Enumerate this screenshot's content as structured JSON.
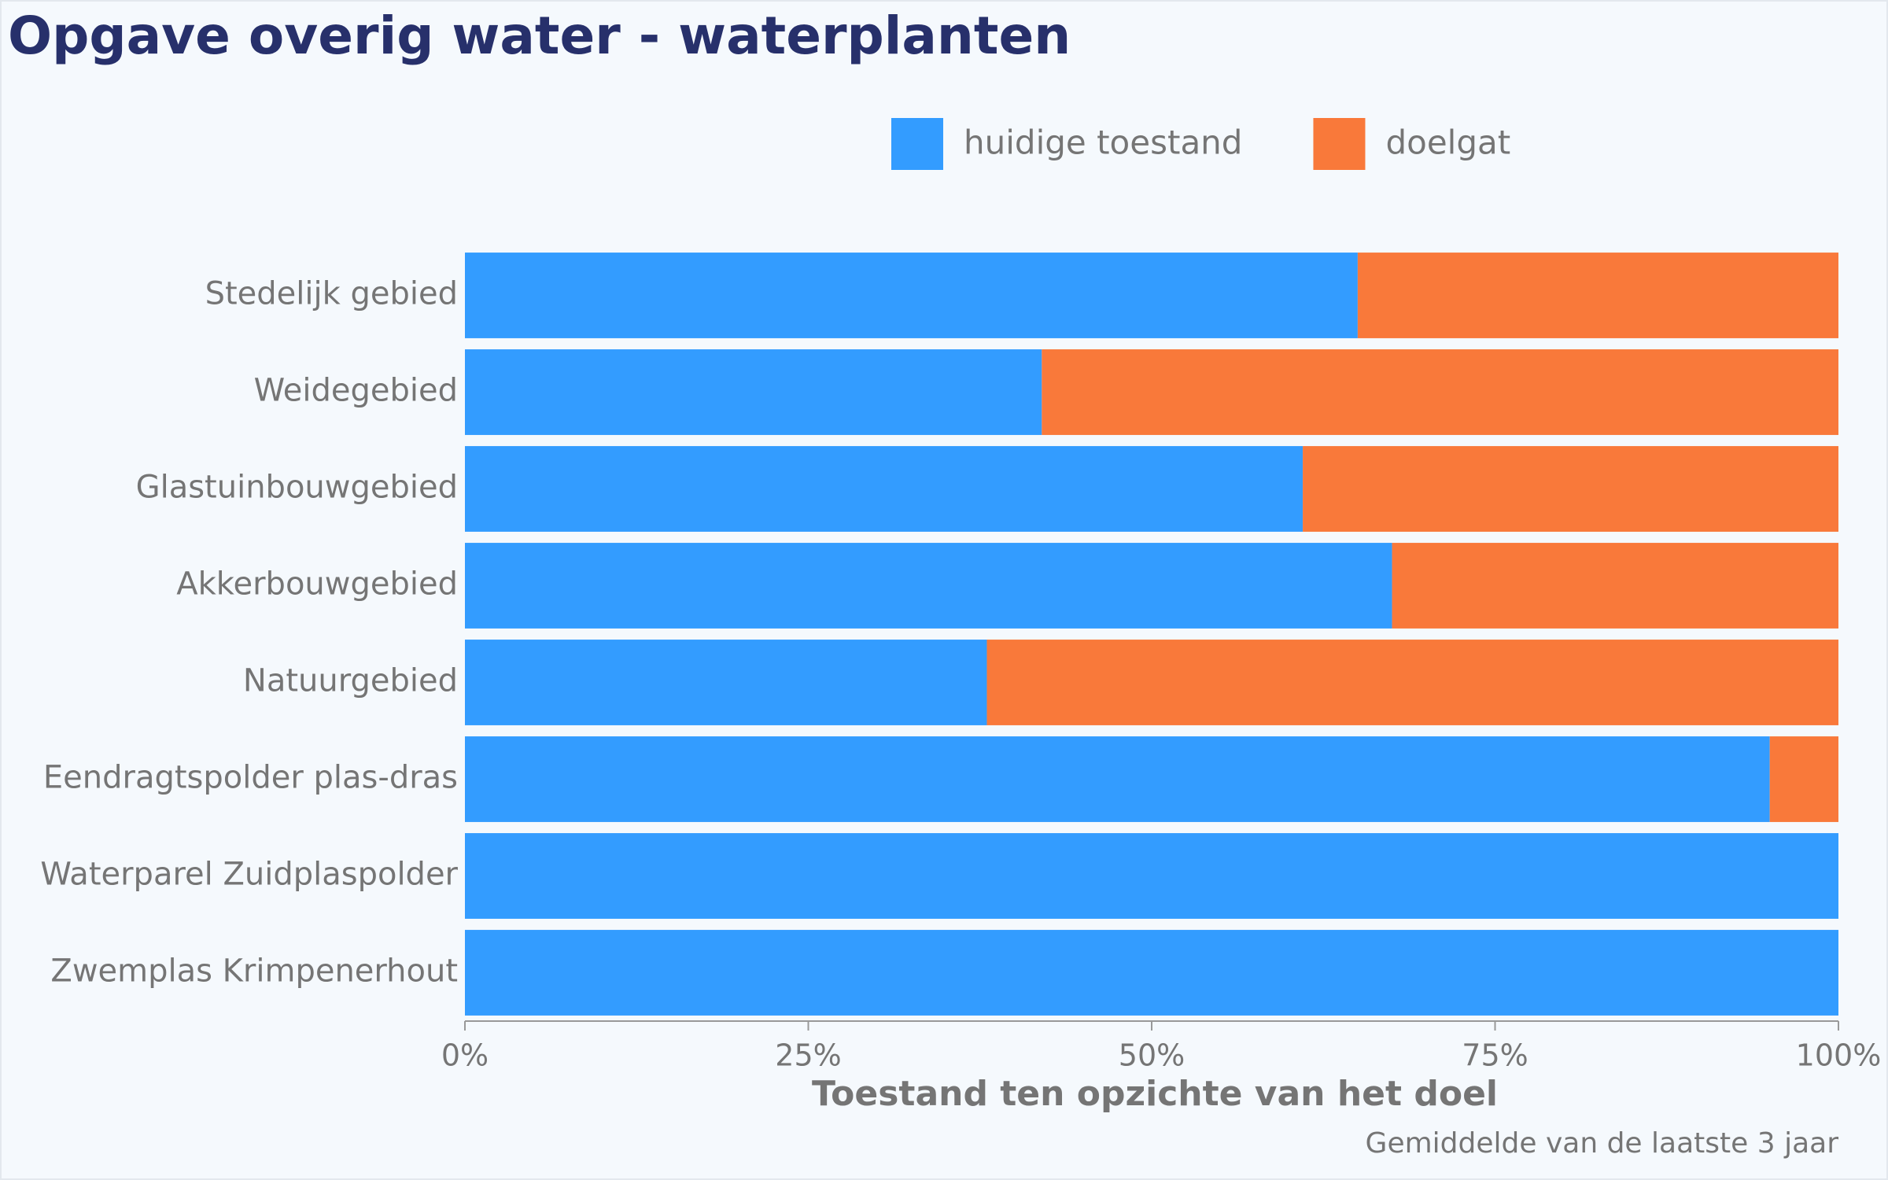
{
  "chart_data": {
    "type": "stacked-bar",
    "orientation": "horizontal",
    "title": "Opgave overig water - waterplanten",
    "categories": [
      "Stedelijk gebied",
      "Weidegebied",
      "Glastuinbouwgebied",
      "Akkerbouwgebied",
      "Natuurgebied",
      "Eendragtspolder plas-dras",
      "Waterparel Zuidplaspolder",
      "Zwemplas Krimpenerhout"
    ],
    "series": [
      {
        "name": "huidige toestand",
        "color": "#339cff",
        "values": [
          65,
          42,
          61,
          67.5,
          38,
          95,
          100,
          100
        ]
      },
      {
        "name": "doelgat",
        "color": "#f9793a",
        "values": [
          35,
          58,
          39,
          32.5,
          62,
          5,
          0,
          0
        ]
      }
    ],
    "xlim": [
      0,
      100
    ],
    "xticks": [
      {
        "value": 0,
        "label": "0%"
      },
      {
        "value": 25,
        "label": "25%"
      },
      {
        "value": 50,
        "label": "50%"
      },
      {
        "value": 75,
        "label": "75%"
      },
      {
        "value": 100,
        "label": "100%"
      }
    ],
    "xlabel": "Toestand ten opzichte van het doel",
    "caption": "Gemiddelde van de laatste 3 jaar",
    "legend": "top"
  }
}
